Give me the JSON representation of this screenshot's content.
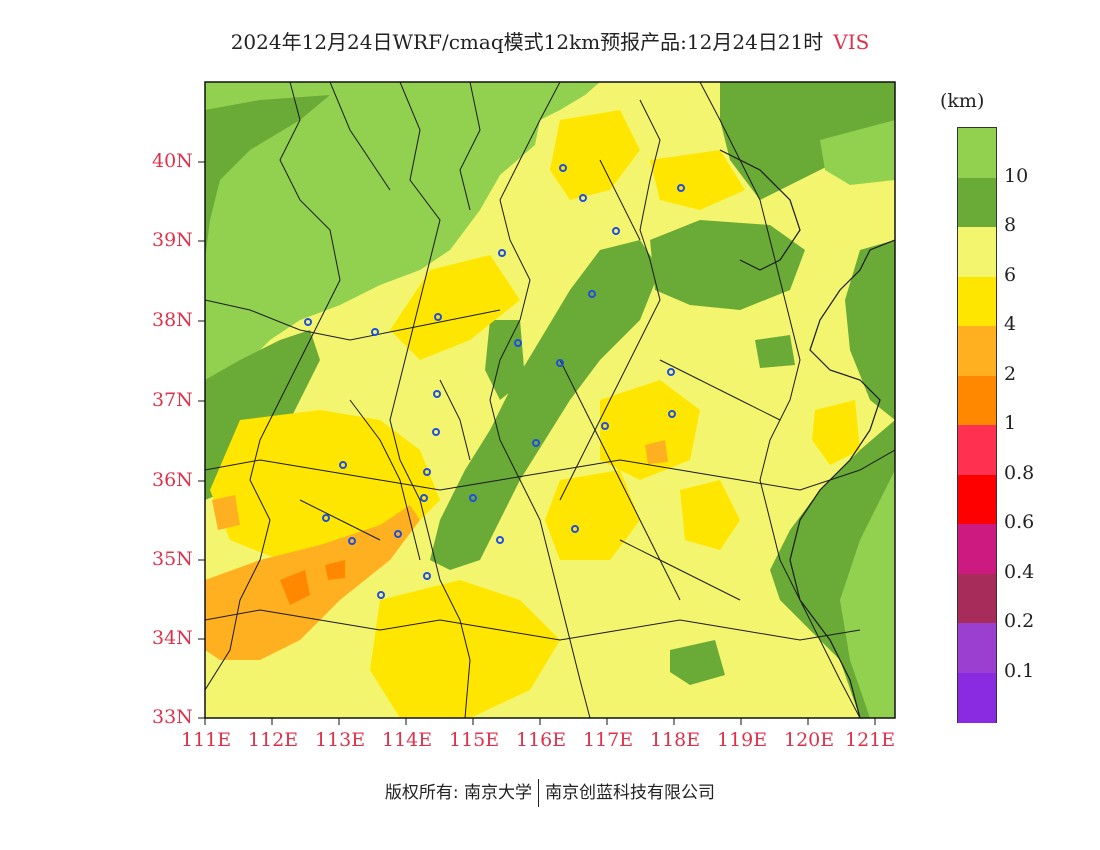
{
  "title": {
    "main": "2024年12月24日WRF/cmaq模式12km预报产品:12月24日21时",
    "variable": "VIS"
  },
  "legend": {
    "unit": "(km)",
    "labels": [
      "10",
      "8",
      "6",
      "4",
      "2",
      "1",
      "0.8",
      "0.6",
      "0.4",
      "0.2",
      "0.1"
    ],
    "colors": [
      "#92d050",
      "#6aaa36",
      "#f3f56e",
      "#ffe600",
      "#ffb020",
      "#ff8800",
      "#ff3050",
      "#ff0000",
      "#cc1a80",
      "#a82c5a",
      "#9b3fd0",
      "#8a2be2"
    ]
  },
  "axes": {
    "lat_labels": [
      "40N",
      "39N",
      "38N",
      "37N",
      "36N",
      "35N",
      "34N",
      "33N"
    ],
    "lon_labels": [
      "111E",
      "112E",
      "113E",
      "114E",
      "115E",
      "116E",
      "117E",
      "118E",
      "119E",
      "120E",
      "121E"
    ]
  },
  "copyright": {
    "left": "版权所有: 南京大学",
    "right": "南京创蓝科技有限公司"
  }
}
